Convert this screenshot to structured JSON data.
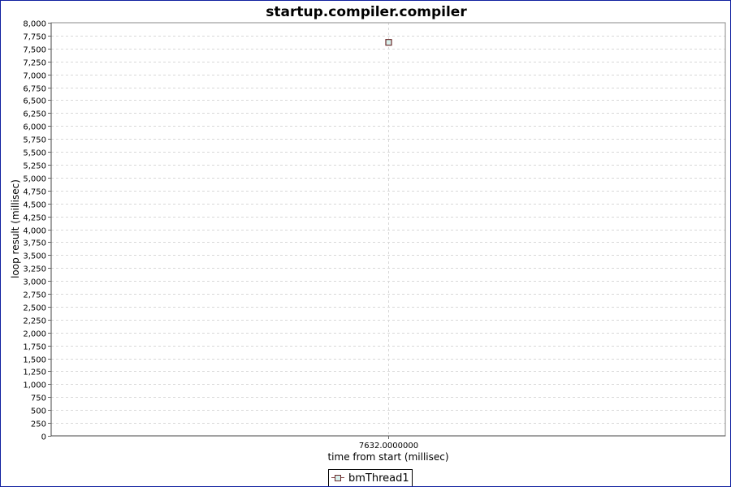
{
  "chart_data": {
    "type": "line",
    "title": "startup.compiler.compiler",
    "xlabel": "time from start (millisec)",
    "ylabel": "loop result (millisec)",
    "categories": [
      "7632.0000000"
    ],
    "series": [
      {
        "name": "bmThread1",
        "values": [
          7620
        ]
      }
    ],
    "ylim": [
      0,
      8000
    ],
    "ytick_step": 250,
    "grid": true,
    "legend": "bottom",
    "colors": {
      "marker_stroke": "#6b2b2b",
      "marker_fill": "#d8f0ec",
      "grid": "#d8d8d8",
      "border": "#1020a0"
    }
  }
}
